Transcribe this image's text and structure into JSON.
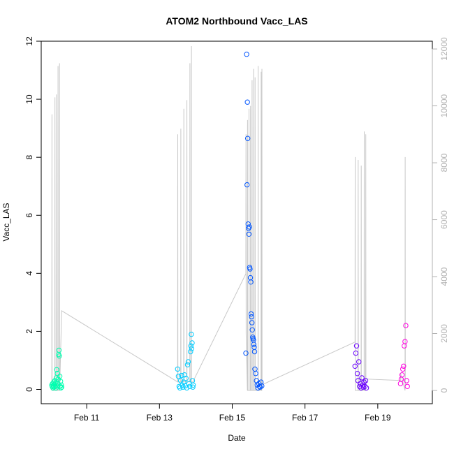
{
  "chart_data": {
    "type": "scatter",
    "title": "ATOM2 Northbound Vacc_LAS",
    "xlabel": "Date",
    "ylabel": "Vacc_LAS",
    "x_type": "date",
    "xlim": [
      "2024-02-09T18:00:00",
      "2024-02-20T12:00:00"
    ],
    "ylim": [
      0,
      12
    ],
    "y2lim": [
      0,
      12800
    ],
    "x_ticks": [
      {
        "date": "2024-02-11T00:00:00",
        "label": "Feb 11"
      },
      {
        "date": "2024-02-13T00:00:00",
        "label": "Feb 13"
      },
      {
        "date": "2024-02-15T00:00:00",
        "label": "Feb 15"
      },
      {
        "date": "2024-02-17T00:00:00",
        "label": "Feb 17"
      },
      {
        "date": "2024-02-19T00:00:00",
        "label": "Feb 19"
      }
    ],
    "y_ticks": [
      {
        "value": 0,
        "label": "0"
      },
      {
        "value": 2,
        "label": "2"
      },
      {
        "value": 4,
        "label": "4"
      },
      {
        "value": 6,
        "label": "6"
      },
      {
        "value": 8,
        "label": "8"
      },
      {
        "value": 10,
        "label": "10"
      },
      {
        "value": 12,
        "label": "12"
      }
    ],
    "y2_ticks": [
      {
        "value": 0,
        "label": "0"
      },
      {
        "value": 2000,
        "label": "2000"
      },
      {
        "value": 4000,
        "label": "4000"
      },
      {
        "value": 6000,
        "label": "6000"
      },
      {
        "value": 8000,
        "label": "8000"
      },
      {
        "value": 10000,
        "label": "10000"
      },
      {
        "value": 12000,
        "label": "12000"
      }
    ],
    "grid": false,
    "point_series": [
      {
        "color": "#00ffb0",
        "points": [
          [
            "2024-02-10T01:00",
            0.15
          ],
          [
            "2024-02-10T01:15",
            0.1
          ],
          [
            "2024-02-10T01:30",
            0.2
          ],
          [
            "2024-02-10T01:45",
            0.05
          ],
          [
            "2024-02-10T02:00",
            0.12
          ],
          [
            "2024-02-10T02:15",
            0.25
          ],
          [
            "2024-02-10T02:30",
            0.08
          ],
          [
            "2024-02-10T02:45",
            0.18
          ],
          [
            "2024-02-10T03:00",
            0.3
          ],
          [
            "2024-02-10T03:15",
            0.1
          ],
          [
            "2024-02-10T03:30",
            0.22
          ],
          [
            "2024-02-10T03:45",
            0.05
          ],
          [
            "2024-02-10T04:00",
            0.4
          ],
          [
            "2024-02-10T04:15",
            0.68
          ],
          [
            "2024-02-10T04:30",
            0.12
          ],
          [
            "2024-02-10T04:45",
            0.55
          ],
          [
            "2024-02-10T05:00",
            0.2
          ],
          [
            "2024-02-10T05:15",
            0.35
          ],
          [
            "2024-02-10T05:30",
            1.2
          ],
          [
            "2024-02-10T05:45",
            1.35
          ],
          [
            "2024-02-10T06:00",
            1.15
          ],
          [
            "2024-02-10T06:15",
            0.45
          ],
          [
            "2024-02-10T06:30",
            0.1
          ],
          [
            "2024-02-10T06:45",
            0.28
          ],
          [
            "2024-02-10T07:00",
            0.05
          ],
          [
            "2024-02-10T07:15",
            0.15
          ],
          [
            "2024-02-10T07:30",
            0.08
          ]
        ]
      },
      {
        "color": "#00ccff",
        "points": [
          [
            "2024-02-13T12:00",
            0.7
          ],
          [
            "2024-02-13T12:30",
            0.45
          ],
          [
            "2024-02-13T13:00",
            0.1
          ],
          [
            "2024-02-13T13:30",
            0.05
          ],
          [
            "2024-02-13T14:00",
            0.3
          ],
          [
            "2024-02-13T14:30",
            0.48
          ],
          [
            "2024-02-13T15:00",
            0.15
          ],
          [
            "2024-02-13T15:30",
            0.08
          ],
          [
            "2024-02-13T16:00",
            0.25
          ],
          [
            "2024-02-13T16:30",
            0.5
          ],
          [
            "2024-02-13T17:00",
            0.12
          ],
          [
            "2024-02-13T17:30",
            0.38
          ],
          [
            "2024-02-13T18:00",
            0.05
          ],
          [
            "2024-02-13T18:30",
            0.85
          ],
          [
            "2024-02-13T19:00",
            0.95
          ],
          [
            "2024-02-13T19:30",
            0.2
          ],
          [
            "2024-02-13T20:00",
            0.1
          ],
          [
            "2024-02-13T20:30",
            1.3
          ],
          [
            "2024-02-13T20:45",
            1.5
          ],
          [
            "2024-02-13T21:00",
            1.9
          ],
          [
            "2024-02-13T21:15",
            1.4
          ],
          [
            "2024-02-13T21:30",
            1.6
          ],
          [
            "2024-02-13T21:45",
            0.3
          ],
          [
            "2024-02-13T22:00",
            0.08
          ],
          [
            "2024-02-13T22:15",
            0.15
          ]
        ]
      },
      {
        "color": "#0055ff",
        "points": [
          [
            "2024-02-15T09:00",
            1.25
          ],
          [
            "2024-02-15T09:30",
            11.55
          ],
          [
            "2024-02-15T10:00",
            9.9
          ],
          [
            "2024-02-15T10:15",
            8.65
          ],
          [
            "2024-02-15T09:45",
            7.05
          ],
          [
            "2024-02-15T10:30",
            5.7
          ],
          [
            "2024-02-15T10:45",
            5.55
          ],
          [
            "2024-02-15T11:00",
            5.35
          ],
          [
            "2024-02-15T11:15",
            5.6
          ],
          [
            "2024-02-15T11:30",
            4.2
          ],
          [
            "2024-02-15T11:45",
            4.15
          ],
          [
            "2024-02-15T12:00",
            3.85
          ],
          [
            "2024-02-15T12:15",
            3.7
          ],
          [
            "2024-02-15T12:30",
            2.6
          ],
          [
            "2024-02-15T12:45",
            2.5
          ],
          [
            "2024-02-15T13:00",
            2.3
          ],
          [
            "2024-02-15T13:15",
            2.05
          ],
          [
            "2024-02-15T13:30",
            1.8
          ],
          [
            "2024-02-15T13:45",
            1.75
          ],
          [
            "2024-02-15T14:00",
            1.7
          ],
          [
            "2024-02-15T14:15",
            1.55
          ],
          [
            "2024-02-15T14:30",
            1.45
          ],
          [
            "2024-02-15T14:45",
            1.3
          ],
          [
            "2024-02-15T15:00",
            0.7
          ],
          [
            "2024-02-15T15:30",
            0.55
          ],
          [
            "2024-02-15T16:00",
            0.3
          ],
          [
            "2024-02-15T16:30",
            0.15
          ],
          [
            "2024-02-15T17:00",
            0.05
          ],
          [
            "2024-02-15T17:30",
            0.2
          ],
          [
            "2024-02-15T18:00",
            0.1
          ],
          [
            "2024-02-15T18:30",
            0.08
          ],
          [
            "2024-02-15T19:00",
            0.25
          ],
          [
            "2024-02-15T19:30",
            0.12
          ]
        ]
      },
      {
        "color": "#6a00ff",
        "points": [
          [
            "2024-02-18T09:00",
            0.8
          ],
          [
            "2024-02-18T09:30",
            1.25
          ],
          [
            "2024-02-18T10:00",
            1.5
          ],
          [
            "2024-02-18T10:30",
            0.55
          ],
          [
            "2024-02-18T11:00",
            0.3
          ],
          [
            "2024-02-18T11:30",
            0.95
          ],
          [
            "2024-02-18T12:00",
            0.1
          ],
          [
            "2024-02-18T12:30",
            0.2
          ],
          [
            "2024-02-18T13:00",
            0.05
          ],
          [
            "2024-02-18T13:30",
            0.4
          ],
          [
            "2024-02-18T14:00",
            0.15
          ],
          [
            "2024-02-18T14:30",
            0.08
          ],
          [
            "2024-02-18T15:00",
            0.25
          ],
          [
            "2024-02-18T15:30",
            0.1
          ],
          [
            "2024-02-18T16:00",
            0.3
          ],
          [
            "2024-02-18T16:30",
            0.05
          ]
        ]
      },
      {
        "color": "#ff00e0",
        "points": [
          [
            "2024-02-19T15:00",
            0.2
          ],
          [
            "2024-02-19T15:30",
            0.35
          ],
          [
            "2024-02-19T16:00",
            0.5
          ],
          [
            "2024-02-19T16:30",
            0.7
          ],
          [
            "2024-02-19T17:00",
            0.8
          ],
          [
            "2024-02-19T17:30",
            1.5
          ],
          [
            "2024-02-19T18:00",
            1.65
          ],
          [
            "2024-02-19T18:30",
            2.2
          ],
          [
            "2024-02-19T19:00",
            0.3
          ],
          [
            "2024-02-19T19:30",
            0.1
          ]
        ]
      }
    ],
    "line_series": {
      "color": "#c8c8c8",
      "axis": "right",
      "points": [
        [
          "2024-02-10T01:00",
          0
        ],
        [
          "2024-02-10T01:05",
          9700
        ],
        [
          "2024-02-10T01:10",
          0
        ],
        [
          "2024-02-10T03:00",
          0
        ],
        [
          "2024-02-10T03:05",
          10300
        ],
        [
          "2024-02-10T03:10",
          0
        ],
        [
          "2024-02-10T04:00",
          0
        ],
        [
          "2024-02-10T04:05",
          10400
        ],
        [
          "2024-02-10T04:10",
          0
        ],
        [
          "2024-02-10T05:00",
          0
        ],
        [
          "2024-02-10T05:05",
          11400
        ],
        [
          "2024-02-10T05:10",
          0
        ],
        [
          "2024-02-10T06:00",
          0
        ],
        [
          "2024-02-10T06:05",
          11500
        ],
        [
          "2024-02-10T06:10",
          0
        ],
        [
          "2024-02-10T07:30",
          2800
        ],
        [
          "2024-02-13T12:00",
          300
        ],
        [
          "2024-02-13T12:05",
          9000
        ],
        [
          "2024-02-13T12:10",
          300
        ],
        [
          "2024-02-13T14:00",
          300
        ],
        [
          "2024-02-13T14:05",
          9200
        ],
        [
          "2024-02-13T14:10",
          300
        ],
        [
          "2024-02-13T16:00",
          300
        ],
        [
          "2024-02-13T16:05",
          9900
        ],
        [
          "2024-02-13T16:10",
          300
        ],
        [
          "2024-02-13T18:00",
          300
        ],
        [
          "2024-02-13T18:05",
          10200
        ],
        [
          "2024-02-13T18:10",
          300
        ],
        [
          "2024-02-13T20:00",
          300
        ],
        [
          "2024-02-13T20:05",
          11500
        ],
        [
          "2024-02-13T20:10",
          300
        ],
        [
          "2024-02-13T21:00",
          300
        ],
        [
          "2024-02-13T21:05",
          12100
        ],
        [
          "2024-02-13T21:10",
          300
        ],
        [
          "2024-02-13T22:00",
          300
        ],
        [
          "2024-02-15T09:00",
          4100
        ],
        [
          "2024-02-15T09:05",
          9000
        ],
        [
          "2024-02-15T09:10",
          2000
        ],
        [
          "2024-02-15T10:00",
          0
        ],
        [
          "2024-02-15T10:05",
          9500
        ],
        [
          "2024-02-15T10:10",
          0
        ],
        [
          "2024-02-15T11:00",
          0
        ],
        [
          "2024-02-15T11:05",
          9900
        ],
        [
          "2024-02-15T11:10",
          0
        ],
        [
          "2024-02-15T12:00",
          0
        ],
        [
          "2024-02-15T12:05",
          10000
        ],
        [
          "2024-02-15T12:10",
          0
        ],
        [
          "2024-02-15T13:00",
          0
        ],
        [
          "2024-02-15T13:05",
          10900
        ],
        [
          "2024-02-15T13:10",
          0
        ],
        [
          "2024-02-15T14:00",
          0
        ],
        [
          "2024-02-15T14:05",
          11300
        ],
        [
          "2024-02-15T14:10",
          0
        ],
        [
          "2024-02-15T15:00",
          0
        ],
        [
          "2024-02-15T15:05",
          11000
        ],
        [
          "2024-02-15T15:10",
          0
        ],
        [
          "2024-02-15T17:00",
          0
        ],
        [
          "2024-02-15T17:05",
          11400
        ],
        [
          "2024-02-15T17:10",
          0
        ],
        [
          "2024-02-15T19:00",
          0
        ],
        [
          "2024-02-15T19:05",
          11200
        ],
        [
          "2024-02-15T19:10",
          0
        ],
        [
          "2024-02-15T19:30",
          0
        ],
        [
          "2024-02-15T19:35",
          11300
        ],
        [
          "2024-02-15T19:40",
          200
        ],
        [
          "2024-02-18T09:00",
          1700
        ],
        [
          "2024-02-18T09:05",
          8200
        ],
        [
          "2024-02-18T09:10",
          0
        ],
        [
          "2024-02-18T11:00",
          0
        ],
        [
          "2024-02-18T11:05",
          8100
        ],
        [
          "2024-02-18T11:10",
          0
        ],
        [
          "2024-02-18T13:00",
          0
        ],
        [
          "2024-02-18T13:05",
          7900
        ],
        [
          "2024-02-18T13:10",
          0
        ],
        [
          "2024-02-18T15:00",
          0
        ],
        [
          "2024-02-18T15:05",
          9100
        ],
        [
          "2024-02-18T15:10",
          0
        ],
        [
          "2024-02-18T16:00",
          0
        ],
        [
          "2024-02-18T16:05",
          9000
        ],
        [
          "2024-02-18T16:10",
          400
        ],
        [
          "2024-02-19T15:00",
          350
        ],
        [
          "2024-02-19T15:05",
          600
        ],
        [
          "2024-02-19T18:00",
          0
        ],
        [
          "2024-02-19T18:05",
          8200
        ],
        [
          "2024-02-19T18:10",
          200
        ]
      ]
    }
  }
}
